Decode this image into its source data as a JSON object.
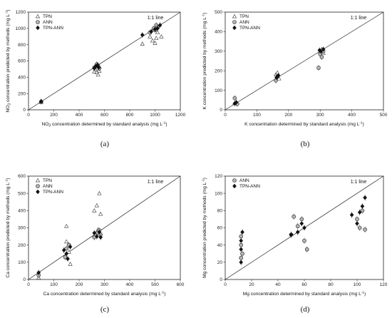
{
  "chart_data": [
    {
      "id": "a",
      "type": "scatter",
      "panel_label": "(a)",
      "xlabel": "NO3 concentration determined by standard analysis (mg L-1)",
      "ylabel": "NO3 concentration predicted by methods (mg L-1)",
      "xlim": [
        0,
        1200
      ],
      "ylim": [
        0,
        1200
      ],
      "xticks": [
        0,
        200,
        400,
        600,
        800,
        1000,
        1200
      ],
      "yticks": [
        0,
        200,
        400,
        600,
        800,
        1000,
        1200
      ],
      "annotation": "1:1 line",
      "legend": [
        "TPN",
        "ANN",
        "TPN-ANN"
      ],
      "series": [
        {
          "name": "TPN",
          "marker": "triangle",
          "points": [
            [
              100,
              95
            ],
            [
              100,
              110
            ],
            [
              520,
              470
            ],
            [
              530,
              500
            ],
            [
              540,
              460
            ],
            [
              550,
              430
            ],
            [
              560,
              480
            ],
            [
              530,
              540
            ],
            [
              900,
              810
            ],
            [
              960,
              900
            ],
            [
              980,
              850
            ],
            [
              1000,
              820
            ],
            [
              1010,
              880
            ],
            [
              1020,
              950
            ],
            [
              1050,
              900
            ],
            [
              990,
              1000
            ]
          ]
        },
        {
          "name": "ANN",
          "marker": "circle",
          "points": [
            [
              100,
              100
            ],
            [
              520,
              520
            ],
            [
              540,
              560
            ],
            [
              550,
              540
            ],
            [
              560,
              510
            ],
            [
              960,
              950
            ],
            [
              990,
              1000
            ],
            [
              1010,
              1040
            ],
            [
              1000,
              980
            ],
            [
              1020,
              1010
            ]
          ]
        },
        {
          "name": "TPN-ANN",
          "marker": "diamond",
          "points": [
            [
              100,
              102
            ],
            [
              520,
              510
            ],
            [
              530,
              530
            ],
            [
              545,
              550
            ],
            [
              555,
              520
            ],
            [
              900,
              920
            ],
            [
              970,
              960
            ],
            [
              1000,
              990
            ],
            [
              1020,
              1000
            ],
            [
              1040,
              1040
            ]
          ]
        }
      ]
    },
    {
      "id": "b",
      "type": "scatter",
      "panel_label": "(b)",
      "xlabel": "K concentration determined by standard analysis (mg L-1)",
      "ylabel": "K concentration predicted by methods (mg L-1)",
      "xlim": [
        0,
        500
      ],
      "ylim": [
        0,
        500
      ],
      "xticks": [
        0,
        100,
        200,
        300,
        400,
        500
      ],
      "yticks": [
        0,
        100,
        200,
        300,
        400,
        500
      ],
      "annotation": "1:1 line",
      "legend": [
        "TPN",
        "ANN",
        "TPN-ANN"
      ],
      "series": [
        {
          "name": "TPN",
          "marker": "triangle",
          "points": [
            [
              30,
              35
            ],
            [
              35,
              40
            ],
            [
              160,
              180
            ],
            [
              165,
              190
            ],
            [
              170,
              160
            ],
            [
              300,
              300
            ],
            [
              305,
              310
            ],
            [
              310,
              290
            ]
          ]
        },
        {
          "name": "ANN",
          "marker": "circle",
          "points": [
            [
              30,
              60
            ],
            [
              38,
              30
            ],
            [
              160,
              150
            ],
            [
              165,
              170
            ],
            [
              295,
              215
            ],
            [
              300,
              285
            ],
            [
              305,
              270
            ],
            [
              310,
              300
            ]
          ]
        },
        {
          "name": "TPN-ANN",
          "marker": "diamond",
          "points": [
            [
              30,
              32
            ],
            [
              35,
              38
            ],
            [
              162,
              165
            ],
            [
              168,
              175
            ],
            [
              298,
              305
            ],
            [
              302,
              300
            ],
            [
              310,
              310
            ]
          ]
        }
      ]
    },
    {
      "id": "c",
      "type": "scatter",
      "panel_label": "(c)",
      "xlabel": "Ca concentration determined by standard analysis (mg L-1)",
      "ylabel": "Ca concentration predicted by methods (mg L-1)",
      "xlim": [
        0,
        600
      ],
      "ylim": [
        0,
        600
      ],
      "xticks": [
        0,
        100,
        200,
        300,
        400,
        500,
        600
      ],
      "yticks": [
        0,
        100,
        200,
        300,
        400,
        500,
        600
      ],
      "annotation": "1:1 line",
      "legend": [
        "TPN",
        "ANN",
        "TPN-ANN"
      ],
      "series": [
        {
          "name": "TPN",
          "marker": "triangle",
          "points": [
            [
              40,
              10
            ],
            [
              150,
              310
            ],
            [
              150,
              220
            ],
            [
              160,
              160
            ],
            [
              165,
              90
            ],
            [
              260,
              400
            ],
            [
              270,
              430
            ],
            [
              280,
              500
            ],
            [
              285,
              380
            ],
            [
              275,
              290
            ]
          ]
        },
        {
          "name": "ANN",
          "marker": "circle",
          "points": [
            [
              40,
              25
            ],
            [
              145,
              130
            ],
            [
              150,
              180
            ],
            [
              160,
              200
            ],
            [
              260,
              245
            ],
            [
              270,
              270
            ],
            [
              280,
              285
            ],
            [
              285,
              260
            ]
          ]
        },
        {
          "name": "TPN-ANN",
          "marker": "diamond",
          "points": [
            [
              40,
              40
            ],
            [
              140,
              170
            ],
            [
              150,
              150
            ],
            [
              155,
              120
            ],
            [
              165,
              190
            ],
            [
              260,
              270
            ],
            [
              270,
              250
            ],
            [
              280,
              275
            ],
            [
              285,
              245
            ]
          ]
        }
      ]
    },
    {
      "id": "d",
      "type": "scatter",
      "panel_label": "(d)",
      "xlabel": "Mg concentration determined by standard analysis (mg L-1)",
      "ylabel": "Mg concentration predicted by methods (mg L-1)",
      "xlim": [
        0,
        120
      ],
      "ylim": [
        0,
        120
      ],
      "xticks": [
        0,
        20,
        40,
        60,
        80,
        100,
        120
      ],
      "yticks": [
        0,
        20,
        40,
        60,
        80,
        100,
        120
      ],
      "annotation": "1:1 line",
      "legend": [
        "ANN",
        "TPN-ANN"
      ],
      "series": [
        {
          "name": "ANN",
          "marker": "circle",
          "points": [
            [
              12,
              25
            ],
            [
              12,
              40
            ],
            [
              12,
              50
            ],
            [
              13,
              30
            ],
            [
              50,
              52
            ],
            [
              52,
              73
            ],
            [
              55,
              62
            ],
            [
              58,
              70
            ],
            [
              60,
              45
            ],
            [
              62,
              35
            ],
            [
              100,
              70
            ],
            [
              102,
              60
            ],
            [
              104,
              80
            ],
            [
              106,
              58
            ]
          ]
        },
        {
          "name": "TPN-ANN",
          "marker": "diamond",
          "points": [
            [
              12,
              20
            ],
            [
              12,
              35
            ],
            [
              12,
              45
            ],
            [
              13,
              55
            ],
            [
              50,
              52
            ],
            [
              55,
              55
            ],
            [
              58,
              65
            ],
            [
              60,
              60
            ],
            [
              96,
              75
            ],
            [
              100,
              65
            ],
            [
              102,
              78
            ],
            [
              104,
              85
            ],
            [
              106,
              95
            ]
          ]
        }
      ]
    }
  ]
}
